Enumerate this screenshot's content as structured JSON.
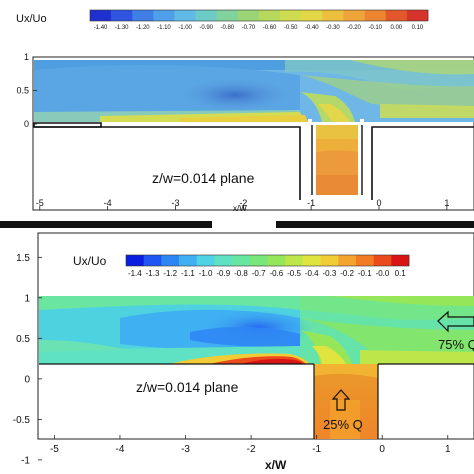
{
  "chart_data": [
    {
      "type": "heatmap",
      "colorbar": {
        "label": "Ux/Uo",
        "ticks": [
          "-1.40",
          "-1.30",
          "-1.20",
          "-1.10",
          "-1.00",
          "-0.90",
          "-0.80",
          "-0.70",
          "-0.60",
          "-0.50",
          "-0.40",
          "-0.30",
          "-0.20",
          "-0.10",
          "0.00",
          "0.10"
        ],
        "colors": [
          "#1f2fd0",
          "#2e55e0",
          "#3f7ee6",
          "#4f9fea",
          "#5fbbe6",
          "#6ccbc7",
          "#82d39b",
          "#9cd576",
          "#b6d85c",
          "#cfdc4f",
          "#e3d647",
          "#ecbf3e",
          "#eea438",
          "#ec8430",
          "#e2582a",
          "#d6332a"
        ]
      },
      "x_ticks": [
        "-5",
        "-4",
        "-3",
        "-2",
        "-1",
        "0",
        "1"
      ],
      "y_ticks": [
        "1",
        "0.5",
        "0"
      ],
      "xlabel": "x/W",
      "xlim": [
        -5.1,
        1.4
      ],
      "ylim": [
        -1.0,
        1.0
      ],
      "annotation": "z/w=0.014 plane"
    },
    {
      "type": "heatmap",
      "colorbar": {
        "label": "Ux/Uo",
        "ticks": [
          "-1.4",
          "-1.3",
          "-1.2",
          "-1.1",
          "-1.0",
          "-0.9",
          "-0.8",
          "-0.7",
          "-0.6",
          "-0.5",
          "-0.4",
          "-0.3",
          "-0.2",
          "-0.1",
          "-0.0",
          "0.1"
        ],
        "colors": [
          "#0a1ee0",
          "#1f55f0",
          "#2e86f4",
          "#3fb0f2",
          "#4fd2e6",
          "#5fe2c4",
          "#66e6a0",
          "#78e67a",
          "#96e65a",
          "#bce64a",
          "#dfe43e",
          "#f2cc34",
          "#f4a42c",
          "#f27c24",
          "#ea4a1c",
          "#d81414"
        ]
      },
      "x_ticks": [
        "-5",
        "-4",
        "-3",
        "-2",
        "-1",
        "0",
        "1"
      ],
      "y_ticks": [
        "1.5",
        "1",
        "0.5",
        "0",
        "-0.5",
        "-1"
      ],
      "xlabel": "x/W",
      "xlim": [
        -5.25,
        1.4
      ],
      "ylim": [
        -1.1,
        1.8
      ],
      "annotations": [
        "z/w=0.014 plane",
        "75% Q",
        "25% Q"
      ]
    }
  ]
}
